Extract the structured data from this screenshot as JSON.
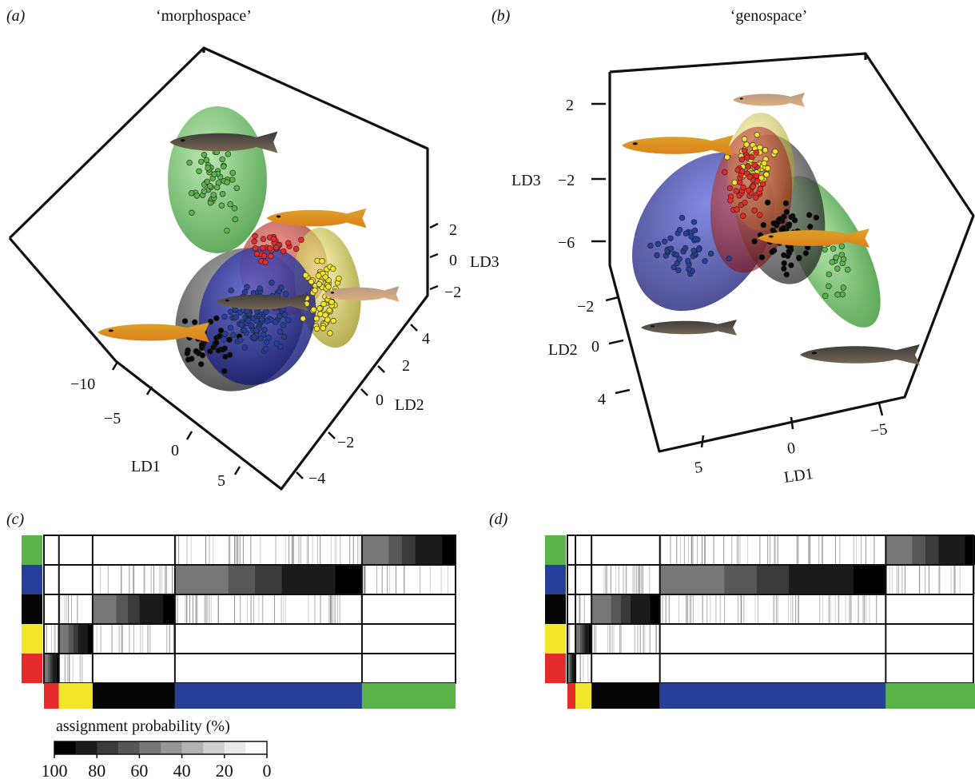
{
  "panels": {
    "a": {
      "label": "(a)",
      "title": "‘morphospace’"
    },
    "b": {
      "label": "(b)",
      "title": "‘genospace’"
    },
    "c": {
      "label": "(c)"
    },
    "d": {
      "label": "(d)"
    }
  },
  "colors": {
    "green": "#5ab44a",
    "blue": "#253f9a",
    "black": "#050505",
    "yellow": "#f2e52a",
    "red": "#e32b2b"
  },
  "chart_data": [
    {
      "type": "scatter",
      "panel": "a",
      "title": "‘morphospace’",
      "axes": {
        "LD1": {
          "label": "LD1",
          "ticks": [
            "−10",
            "−5",
            "0",
            "5"
          ]
        },
        "LD2": {
          "label": "LD2",
          "ticks": [
            "4",
            "2",
            "0",
            "−2",
            "−4"
          ]
        },
        "LD3": {
          "label": "LD3",
          "ticks": [
            "2",
            "0",
            "−2"
          ]
        }
      },
      "groups": [
        "green",
        "red",
        "yellow",
        "black",
        "blue"
      ]
    },
    {
      "type": "scatter",
      "panel": "b",
      "title": "‘genospace’",
      "axes": {
        "LD3": {
          "label": "LD3",
          "ticks": [
            "2",
            "−2",
            "−6"
          ]
        },
        "LD2": {
          "label": "LD2",
          "ticks": [
            "−2",
            "0",
            "4"
          ]
        },
        "LD1": {
          "label": "LD1",
          "ticks": [
            "5",
            "0",
            "−5"
          ]
        }
      },
      "groups": [
        "yellow",
        "red",
        "black",
        "blue",
        "green"
      ]
    },
    {
      "type": "heatmap",
      "panel": "c",
      "rows": [
        "green",
        "blue",
        "black",
        "yellow",
        "red"
      ],
      "group_share": [
        0.2273,
        0.4545,
        0.2,
        0.0818,
        0.0364
      ],
      "legend": {
        "title": "assignment probability (%)",
        "ticks": [
          "100",
          "80",
          "60",
          "40",
          "20",
          "0"
        ]
      }
    },
    {
      "type": "heatmap",
      "panel": "d",
      "rows": [
        "green",
        "blue",
        "black",
        "yellow",
        "red"
      ],
      "group_share": [
        0.2277,
        0.5564,
        0.1683,
        0.0396,
        0.0198
      ]
    }
  ]
}
